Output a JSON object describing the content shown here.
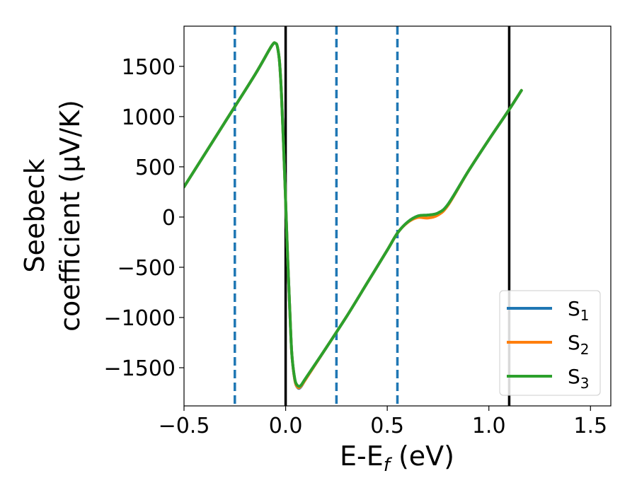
{
  "chart_data": {
    "type": "line",
    "xlabel": {
      "prefix": "E-E",
      "sub": "f",
      "suffix": " (eV)"
    },
    "ylabel": {
      "line1": "Seebeck",
      "line2": "coefficient  (μV/K)"
    },
    "xlim": [
      -0.5,
      1.6
    ],
    "ylim": [
      -1880,
      1900
    ],
    "xticks": [
      {
        "value": -0.5,
        "label": "−0.5"
      },
      {
        "value": 0.0,
        "label": "0.0"
      },
      {
        "value": 0.5,
        "label": "0.5"
      },
      {
        "value": 1.0,
        "label": "1.0"
      },
      {
        "value": 1.5,
        "label": "1.5"
      }
    ],
    "yticks": [
      {
        "value": 1500,
        "label": "1500"
      },
      {
        "value": 1000,
        "label": "1000"
      },
      {
        "value": 500,
        "label": "500"
      },
      {
        "value": 0,
        "label": "0"
      },
      {
        "value": -500,
        "label": "−500"
      },
      {
        "value": -1000,
        "label": "−1000"
      },
      {
        "value": -1500,
        "label": "−1500"
      }
    ],
    "vlines": [
      {
        "x": 0.0,
        "color": "#000000",
        "style": "solid"
      },
      {
        "x": 1.1,
        "color": "#000000",
        "style": "solid"
      },
      {
        "x": -0.25,
        "color": "#1f77b4",
        "style": "dashed"
      },
      {
        "x": 0.25,
        "color": "#1f77b4",
        "style": "dashed"
      },
      {
        "x": 0.55,
        "color": "#1f77b4",
        "style": "dashed"
      }
    ],
    "legend_position": "bottom-right",
    "series": [
      {
        "name": "S",
        "sub": "1",
        "color": "#1f77b4",
        "x": [
          -0.5,
          -0.3,
          -0.15,
          -0.07,
          -0.05,
          -0.04,
          -0.03,
          -0.02,
          -0.01,
          0.0,
          0.01,
          0.02,
          0.03,
          0.045,
          0.06,
          0.075,
          0.1,
          0.2,
          0.3,
          0.4,
          0.5,
          0.55,
          0.6,
          0.65,
          0.7,
          0.75,
          0.8,
          0.9,
          1.0,
          1.1,
          1.16
        ],
        "y": [
          300,
          940,
          1420,
          1700,
          1730,
          1690,
          1540,
          1200,
          700,
          150,
          -400,
          -900,
          -1350,
          -1620,
          -1700,
          -1690,
          -1610,
          -1300,
          -990,
          -660,
          -330,
          -160,
          -50,
          10,
          20,
          40,
          130,
          460,
          770,
          1070,
          1260
        ]
      },
      {
        "name": "S",
        "sub": "2",
        "color": "#ff7f0e",
        "x": [
          -0.5,
          -0.3,
          -0.15,
          -0.07,
          -0.05,
          -0.04,
          -0.03,
          -0.02,
          -0.01,
          0.0,
          0.01,
          0.02,
          0.03,
          0.045,
          0.06,
          0.075,
          0.1,
          0.2,
          0.3,
          0.4,
          0.5,
          0.55,
          0.6,
          0.65,
          0.7,
          0.75,
          0.8,
          0.9,
          1.0,
          1.1,
          1.16
        ],
        "y": [
          300,
          940,
          1420,
          1700,
          1730,
          1690,
          1540,
          1200,
          700,
          150,
          -400,
          -900,
          -1350,
          -1620,
          -1695,
          -1685,
          -1610,
          -1300,
          -990,
          -660,
          -330,
          -160,
          -55,
          -5,
          -10,
          20,
          120,
          460,
          770,
          1070,
          1260
        ]
      },
      {
        "name": "S",
        "sub": "3",
        "color": "#2ca02c",
        "x": [
          -0.5,
          -0.3,
          -0.15,
          -0.07,
          -0.05,
          -0.04,
          -0.03,
          -0.02,
          -0.01,
          0.0,
          0.01,
          0.02,
          0.03,
          0.045,
          0.06,
          0.075,
          0.1,
          0.2,
          0.3,
          0.4,
          0.5,
          0.55,
          0.6,
          0.65,
          0.7,
          0.75,
          0.8,
          0.9,
          1.0,
          1.1,
          1.16
        ],
        "y": [
          300,
          940,
          1420,
          1700,
          1730,
          1690,
          1540,
          1200,
          700,
          150,
          -400,
          -900,
          -1350,
          -1610,
          -1680,
          -1675,
          -1600,
          -1300,
          -990,
          -660,
          -330,
          -160,
          -50,
          10,
          20,
          40,
          130,
          460,
          770,
          1070,
          1260
        ]
      }
    ]
  }
}
